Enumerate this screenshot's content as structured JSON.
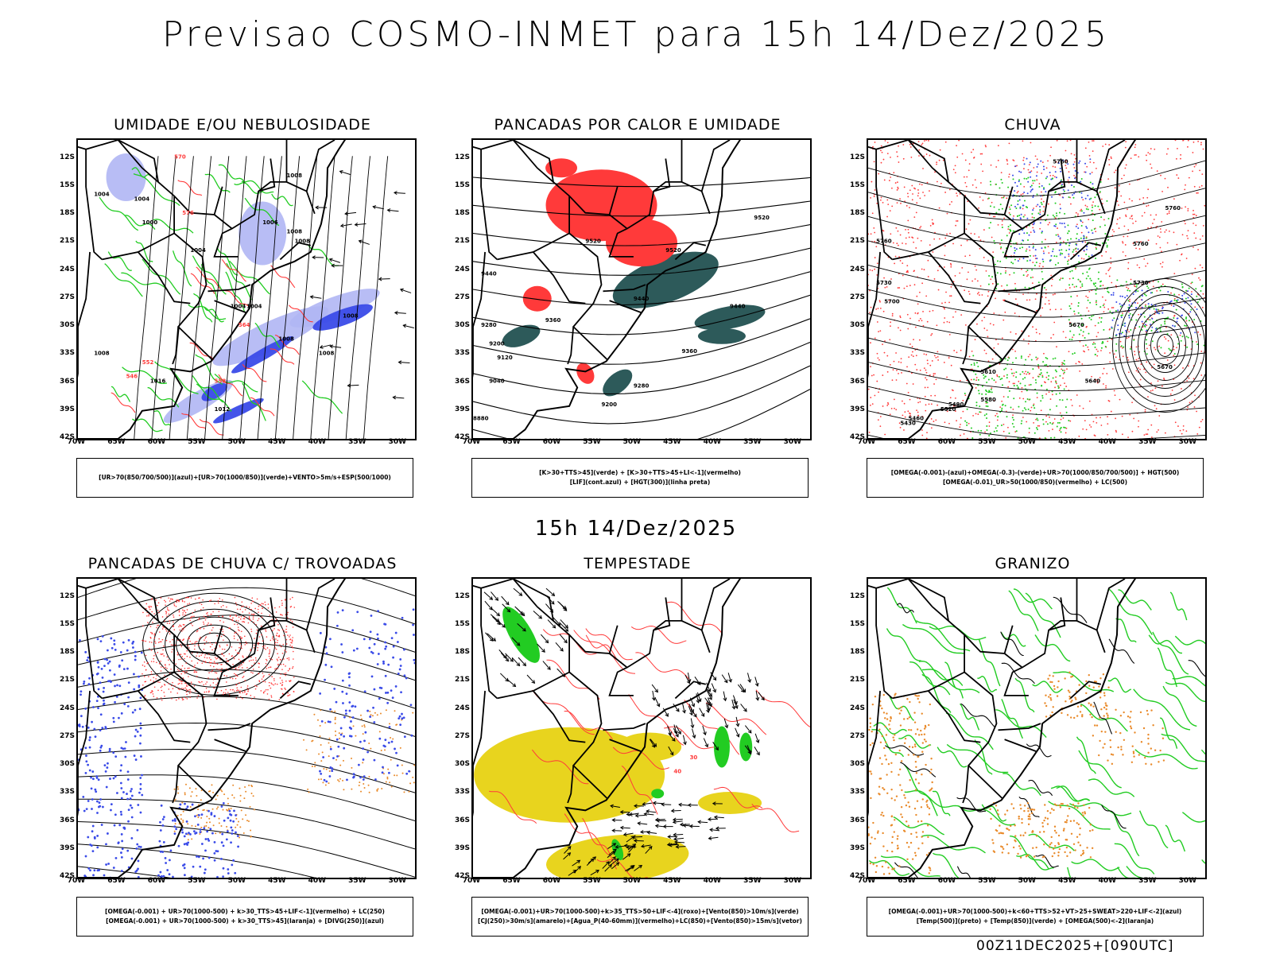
{
  "title": "Previsao COSMO-INMET  para 15h 14/Dez/2025",
  "mid_title": "15h 14/Dez/2025",
  "footer": "00Z11DEC2025+[090UTC]",
  "axes": {
    "lat_labels": [
      "12S",
      "15S",
      "18S",
      "21S",
      "24S",
      "27S",
      "30S",
      "33S",
      "36S",
      "39S",
      "42S"
    ],
    "lon_labels": [
      "70W",
      "65W",
      "60W",
      "55W",
      "50W",
      "45W",
      "40W",
      "35W",
      "30W"
    ]
  },
  "panels": [
    {
      "id": "umidade",
      "title": "UMIDADE E/OU NEBULOSIDADE",
      "legend": [
        "[UR>70(850/700/500)](azul)+[UR>70(1000/850)](verde)+VENTO>5m/s+ESP(500/1000)"
      ],
      "labels": [
        "1008",
        "1004",
        "1004",
        "1000",
        "1004",
        "1006",
        "1008",
        "1008",
        "1004",
        "1004",
        "1008",
        "1008",
        "1016",
        "1012",
        "1008",
        "1008",
        "570",
        "564",
        "576",
        "552",
        "546",
        "558"
      ]
    },
    {
      "id": "pancadas-calor",
      "title": "PANCADAS POR CALOR E UMIDADE",
      "legend": [
        "[K>30+TTS>45](verde) + [K>30+TTS>45+LI<-1](vermelho)",
        "[LIF](cont.azul) + [HGT(300)](linha preta)"
      ],
      "labels": [
        "9520",
        "9520",
        "9520",
        "9440",
        "9440",
        "9440",
        "9360",
        "9360",
        "9280",
        "9280",
        "9200",
        "9200",
        "9120",
        "9040",
        "8880"
      ]
    },
    {
      "id": "chuva",
      "title": "CHUVA",
      "legend": [
        "[OMEGA(-0.001)-(azul)+OMEGA(-0.3)-(verde)+UR>70(1000/850/700/500)] + HGT(500)",
        "[OMEGA(-0.01)_UR>50(1000/850)(vermelho) + LC(500)"
      ],
      "labels": [
        "5760",
        "5760",
        "5760",
        "5760",
        "5730",
        "5730",
        "5700",
        "5670",
        "5670",
        "5640",
        "5610",
        "5580",
        "5520",
        "5490",
        "5460",
        "5430"
      ]
    },
    {
      "id": "trovoadas",
      "title": "PANCADAS DE CHUVA C/ TROVOADAS",
      "legend": [
        "[OMEGA(-0.001) + UR>70(1000-500) + k>30_TTS>45+LIF<-1](vermelho) + LC(250)",
        "[OMEGA(-0.001) + UR>70(1000-500) + k>30_TTS>45](laranja) + [DIVG(250)](azul)"
      ],
      "labels": []
    },
    {
      "id": "tempestade",
      "title": "TEMPESTADE",
      "legend": [
        "[OMEGA(-0.001)+UR>70(1000-500)+k>35_TTS>50+LIF<-4](roxo)+[Vento(850)>10m/s](verde)",
        "[CJ(250)>30m/s](amarelo)+[Agua_P(40-60mm)](vermelho)+LC(850)+[Vento(850)>15m/s](vetor)"
      ],
      "labels": [
        "30",
        "40"
      ]
    },
    {
      "id": "granizo",
      "title": "GRANIZO",
      "legend": [
        "[OMEGA(-0.001)+UR>70(1000-500)+k<60+TTS>52+VT>25+SWEAT>220+LIF<-2](azul)",
        "[Temp(500)](preto) + [Temp(850)](verde) + [OMEGA(500)<-2](laranja)"
      ],
      "labels": []
    }
  ],
  "colors": {
    "blue": "#3a4be8",
    "lightblue": "#b0b6f4",
    "green": "#22cc22",
    "red": "#ff3a3a",
    "darkteal": "#2d5a5a",
    "orange": "#e98a2a",
    "yellow": "#e8d41e"
  }
}
